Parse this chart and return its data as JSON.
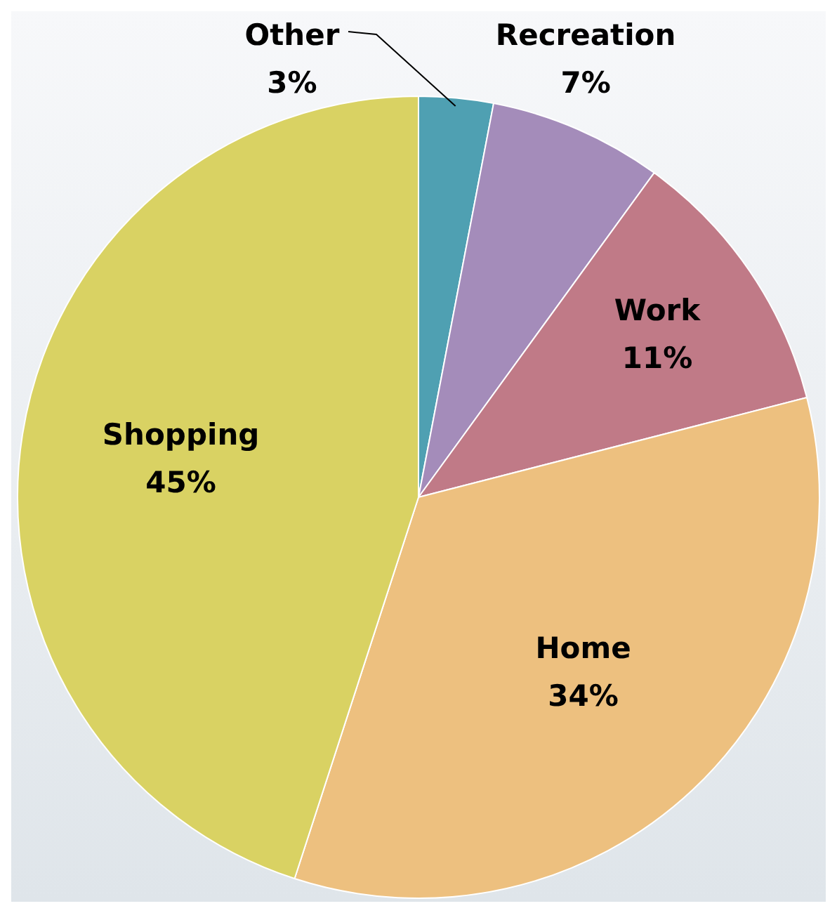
{
  "chart_data": {
    "type": "pie",
    "categories": [
      "Other",
      "Recreation",
      "Work",
      "Home",
      "Shopping"
    ],
    "values": [
      3,
      7,
      11,
      34,
      45
    ],
    "colors": [
      "#4fa0b2",
      "#a48cba",
      "#c07a87",
      "#edc07f",
      "#d9d263"
    ],
    "value_labels": [
      "3%",
      "7%",
      "11%",
      "34%",
      "45%"
    ]
  }
}
